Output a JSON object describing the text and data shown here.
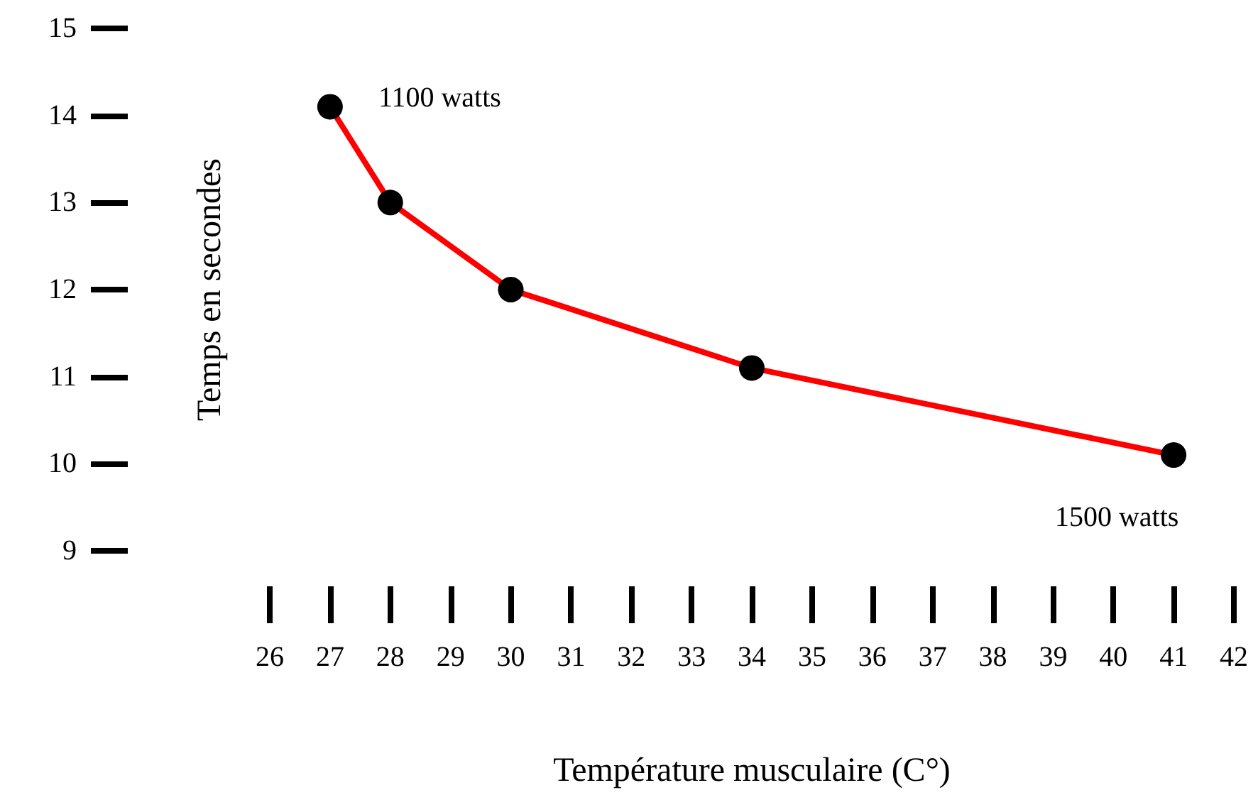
{
  "chart_data": {
    "type": "line",
    "xlabel": "Température musculaire (C°)",
    "ylabel": "Temps en secondes",
    "x": [
      27,
      28,
      30,
      34,
      41
    ],
    "series": [
      {
        "color": "#ff0000",
        "values": [
          14.1,
          13,
          12,
          11.1,
          10.1
        ]
      }
    ],
    "xlim": [
      26,
      42
    ],
    "xticks": [
      26,
      27,
      28,
      29,
      30,
      31,
      32,
      33,
      34,
      35,
      36,
      37,
      38,
      39,
      40,
      41,
      42
    ],
    "ylim": [
      9,
      15
    ],
    "yticks": [
      9,
      10,
      11,
      12,
      13,
      14,
      15
    ],
    "annotations": [
      {
        "text": "1100 watts",
        "x": 27,
        "y": 14.1
      },
      {
        "text": "1500 watts",
        "x": 41,
        "y": 10.1
      }
    ],
    "marker": "circle",
    "line_style": "solid",
    "grid": false
  }
}
